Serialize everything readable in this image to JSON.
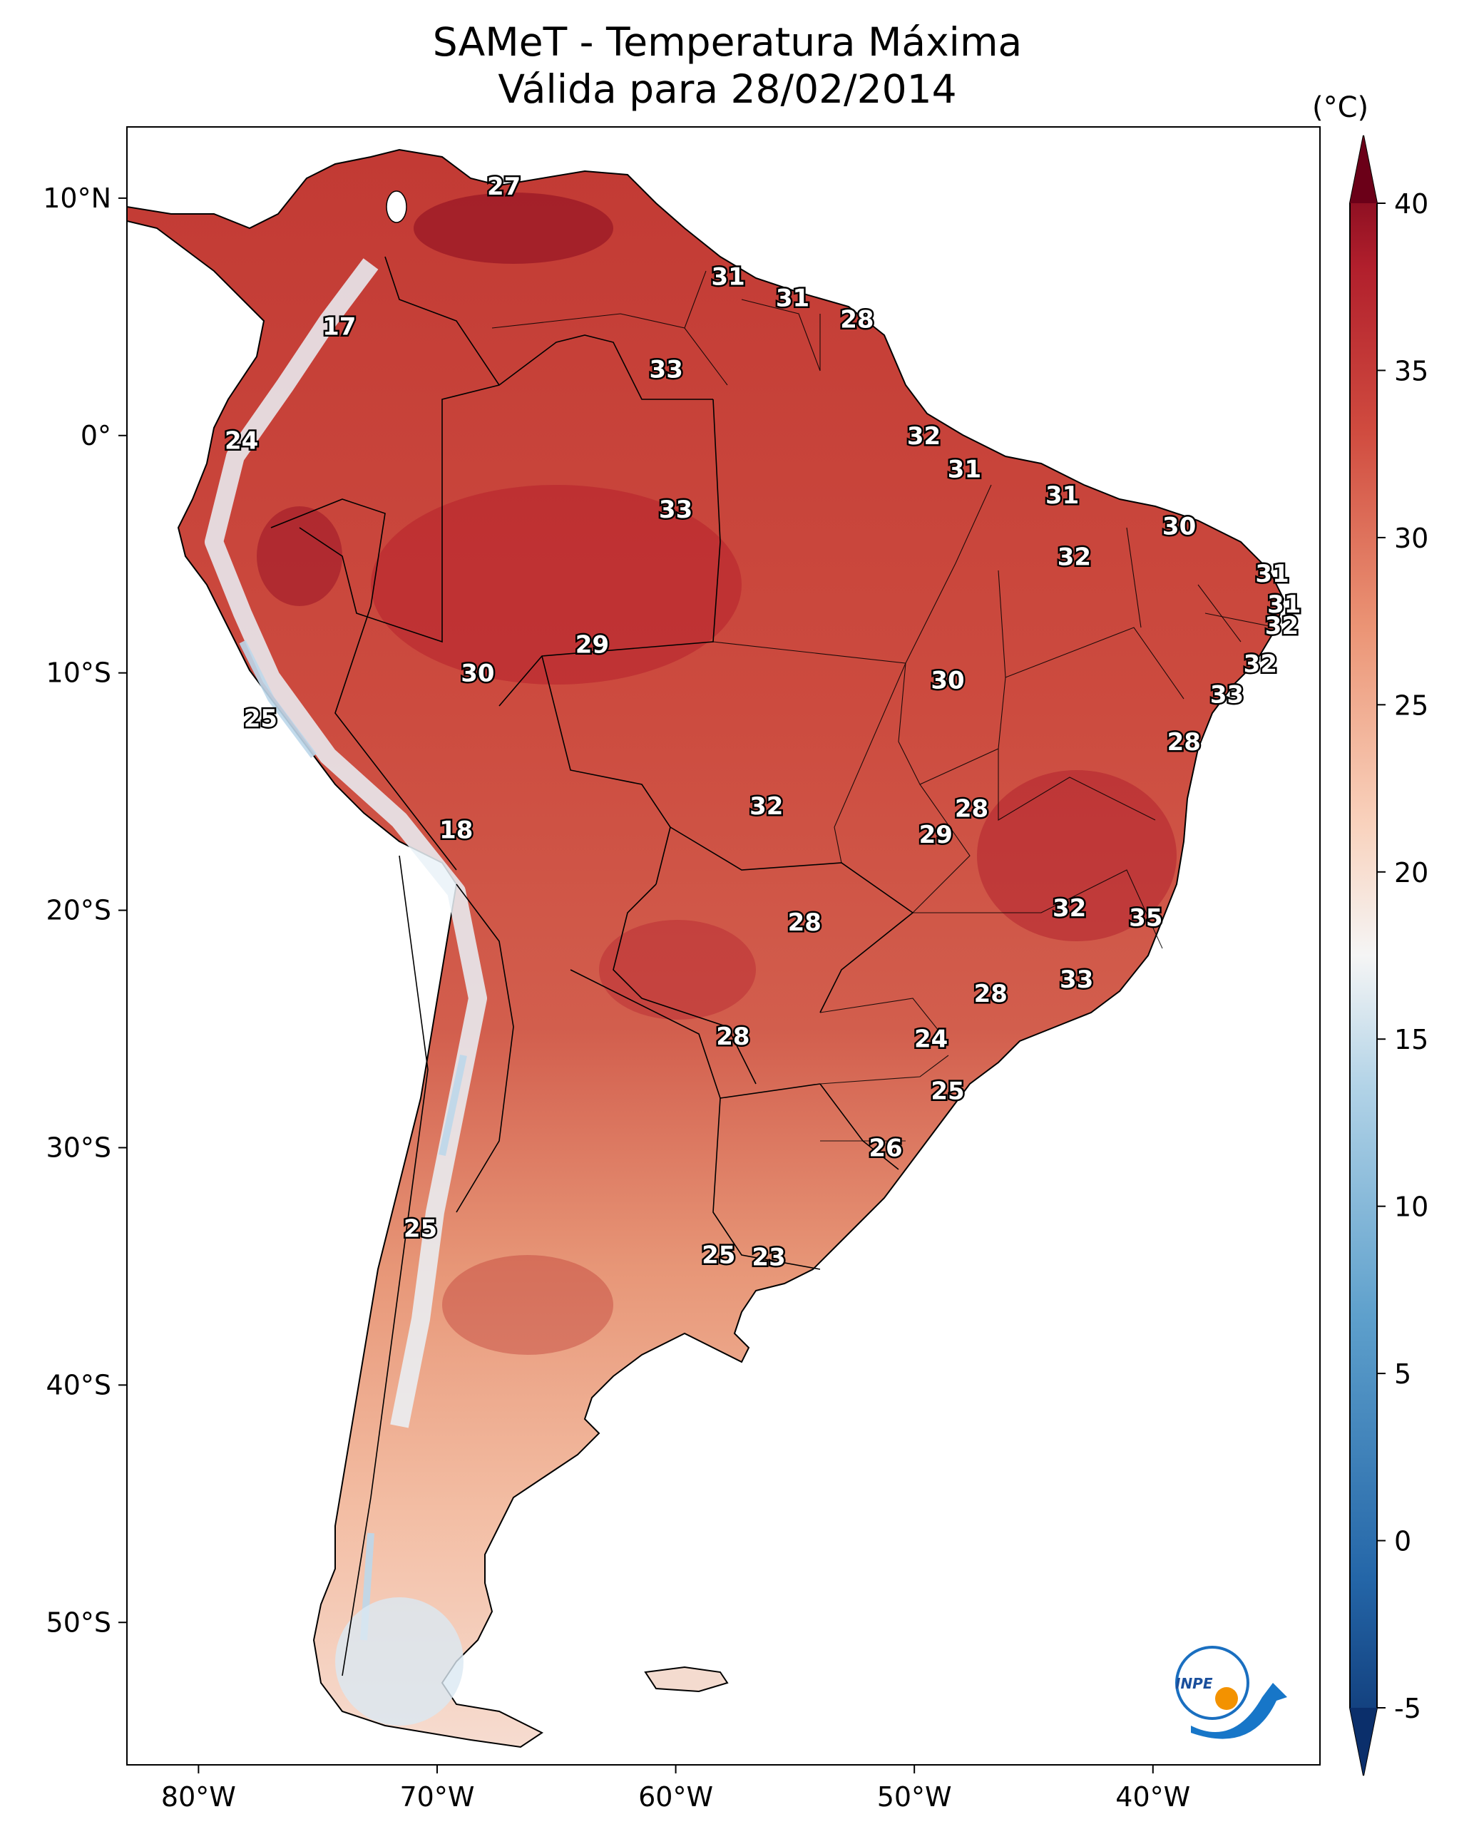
{
  "title": {
    "line1": "SAMeT - Temperatura Máxima",
    "line2": "Válida para 28/02/2014"
  },
  "map_data": {
    "region": "South America",
    "variable": "Temperatura Máxima",
    "units": "(°C)",
    "lon_ticks": [
      {
        "lon": -80,
        "label": "80°W"
      },
      {
        "lon": -70,
        "label": "70°W"
      },
      {
        "lon": -60,
        "label": "60°W"
      },
      {
        "lon": -50,
        "label": "50°W"
      },
      {
        "lon": -40,
        "label": "40°W"
      }
    ],
    "lat_ticks": [
      {
        "lat": 10,
        "label": "10°N"
      },
      {
        "lat": 0,
        "label": "0°"
      },
      {
        "lat": -10,
        "label": "10°S"
      },
      {
        "lat": -20,
        "label": "20°S"
      },
      {
        "lat": -30,
        "label": "30°S"
      },
      {
        "lat": -40,
        "label": "40°S"
      },
      {
        "lat": -50,
        "label": "50°S"
      }
    ],
    "lon_range": [
      -83,
      -33
    ],
    "lat_range": [
      -56,
      13
    ],
    "stations": [
      {
        "lon": -67.2,
        "lat": 10.5,
        "value": "27"
      },
      {
        "lon": -57.8,
        "lat": 6.7,
        "value": "31"
      },
      {
        "lon": -55.1,
        "lat": 5.8,
        "value": "31"
      },
      {
        "lon": -52.4,
        "lat": 4.9,
        "value": "28"
      },
      {
        "lon": -74.1,
        "lat": 4.6,
        "value": "17"
      },
      {
        "lon": -60.4,
        "lat": 2.8,
        "value": "33"
      },
      {
        "lon": -78.2,
        "lat": -0.2,
        "value": "24"
      },
      {
        "lon": -49.6,
        "lat": 0.0,
        "value": "32"
      },
      {
        "lon": -47.9,
        "lat": -1.4,
        "value": "31"
      },
      {
        "lon": -43.8,
        "lat": -2.5,
        "value": "31"
      },
      {
        "lon": -60.0,
        "lat": -3.1,
        "value": "33"
      },
      {
        "lon": -38.9,
        "lat": -3.8,
        "value": "30"
      },
      {
        "lon": -43.3,
        "lat": -5.1,
        "value": "32"
      },
      {
        "lon": -35.0,
        "lat": -5.8,
        "value": "31"
      },
      {
        "lon": -34.5,
        "lat": -7.1,
        "value": "31"
      },
      {
        "lon": -34.6,
        "lat": -8.0,
        "value": "32"
      },
      {
        "lon": -63.5,
        "lat": -8.8,
        "value": "29"
      },
      {
        "lon": -35.5,
        "lat": -9.6,
        "value": "32"
      },
      {
        "lon": -68.3,
        "lat": -10.0,
        "value": "30"
      },
      {
        "lon": -48.6,
        "lat": -10.3,
        "value": "30"
      },
      {
        "lon": -36.9,
        "lat": -10.9,
        "value": "33"
      },
      {
        "lon": -77.4,
        "lat": -11.9,
        "value": "25"
      },
      {
        "lon": -38.7,
        "lat": -12.9,
        "value": "28"
      },
      {
        "lon": -56.2,
        "lat": -15.6,
        "value": "32"
      },
      {
        "lon": -47.6,
        "lat": -15.7,
        "value": "28"
      },
      {
        "lon": -49.1,
        "lat": -16.8,
        "value": "29"
      },
      {
        "lon": -69.2,
        "lat": -16.6,
        "value": "18"
      },
      {
        "lon": -43.5,
        "lat": -19.9,
        "value": "32"
      },
      {
        "lon": -40.3,
        "lat": -20.3,
        "value": "35"
      },
      {
        "lon": -54.6,
        "lat": -20.5,
        "value": "28"
      },
      {
        "lon": -43.2,
        "lat": -22.9,
        "value": "33"
      },
      {
        "lon": -46.8,
        "lat": -23.5,
        "value": "28"
      },
      {
        "lon": -57.6,
        "lat": -25.3,
        "value": "28"
      },
      {
        "lon": -49.3,
        "lat": -25.4,
        "value": "24"
      },
      {
        "lon": -48.6,
        "lat": -27.6,
        "value": "25"
      },
      {
        "lon": -51.2,
        "lat": -30.0,
        "value": "26"
      },
      {
        "lon": -70.7,
        "lat": -33.4,
        "value": "25"
      },
      {
        "lon": -58.2,
        "lat": -34.5,
        "value": "25"
      },
      {
        "lon": -56.1,
        "lat": -34.6,
        "value": "23"
      }
    ]
  },
  "colorbar": {
    "label": "(°C)",
    "min": -5,
    "max": 40,
    "ticks": [
      {
        "value": 40,
        "label": "40"
      },
      {
        "value": 35,
        "label": "35"
      },
      {
        "value": 30,
        "label": "30"
      },
      {
        "value": 25,
        "label": "25"
      },
      {
        "value": 20,
        "label": "20"
      },
      {
        "value": 15,
        "label": "15"
      },
      {
        "value": 10,
        "label": "10"
      },
      {
        "value": 5,
        "label": "5"
      },
      {
        "value": 0,
        "label": "0"
      },
      {
        "value": -5,
        "label": "-5"
      }
    ],
    "colors": {
      "low": "#0b2f6b",
      "mid_low": "#4b93c7",
      "neutral": "#f7f7f7",
      "mid_high": "#e58366",
      "high": "#c22a2f",
      "very_high": "#6b0018"
    }
  },
  "logo": {
    "text": "INPE"
  }
}
